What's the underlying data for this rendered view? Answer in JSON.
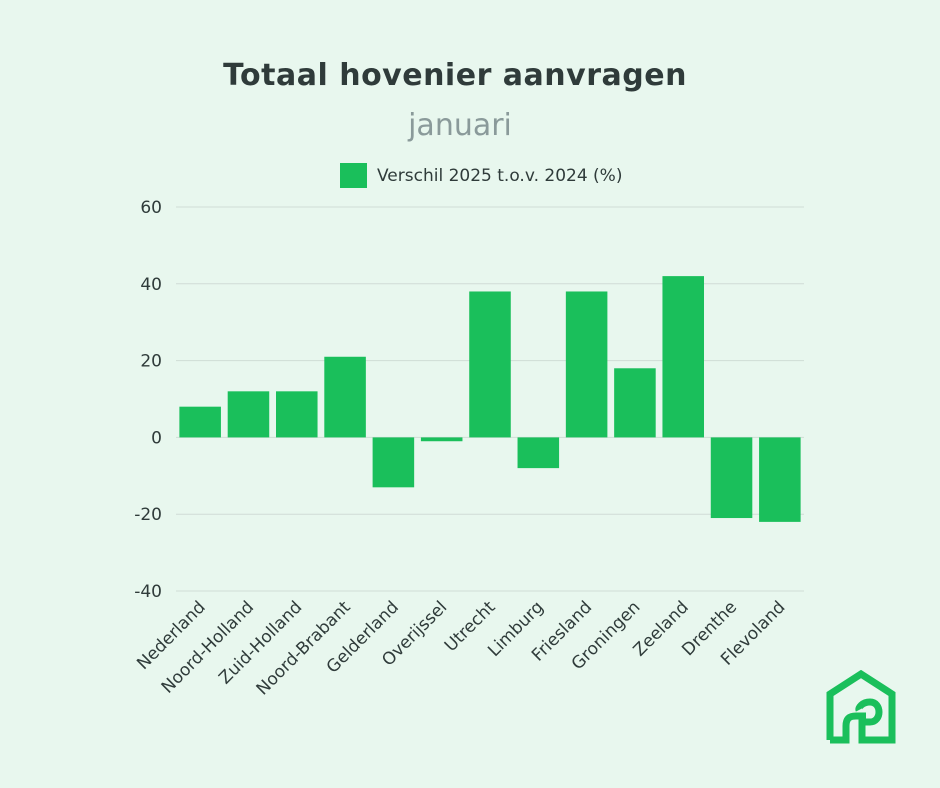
{
  "chart_data": {
    "type": "bar",
    "title": "Totaal hovenier aanvragen",
    "subtitle": "januari",
    "legend": {
      "position": "top",
      "entries": [
        "Verschil 2025 t.o.v. 2024 (%)"
      ]
    },
    "categories": [
      "Nederland",
      "Noord-Holland",
      "Zuid-Holland",
      "Noord-Brabant",
      "Gelderland",
      "Overijssel",
      "Utrecht",
      "Limburg",
      "Friesland",
      "Groningen",
      "Zeeland",
      "Drenthe",
      "Flevoland"
    ],
    "series": [
      {
        "name": "Verschil 2025 t.o.v. 2024 (%)",
        "values": [
          8,
          12,
          12,
          21,
          -13,
          -1,
          38,
          -8,
          38,
          18,
          42,
          -21,
          -22
        ],
        "color": "#1abf5b"
      }
    ],
    "ylim": [
      -40,
      60
    ],
    "yticks": [
      -40,
      -20,
      0,
      20,
      40,
      60
    ],
    "grid": true
  },
  "colors": {
    "background": "#e8f7ee",
    "bar": "#1abf5b",
    "text": "#2f3b3a",
    "subtitle": "#8a9a9a",
    "grid": "#cfdcd5"
  },
  "logo": {
    "icon": "house-path-logo",
    "color": "#1abf5b"
  }
}
